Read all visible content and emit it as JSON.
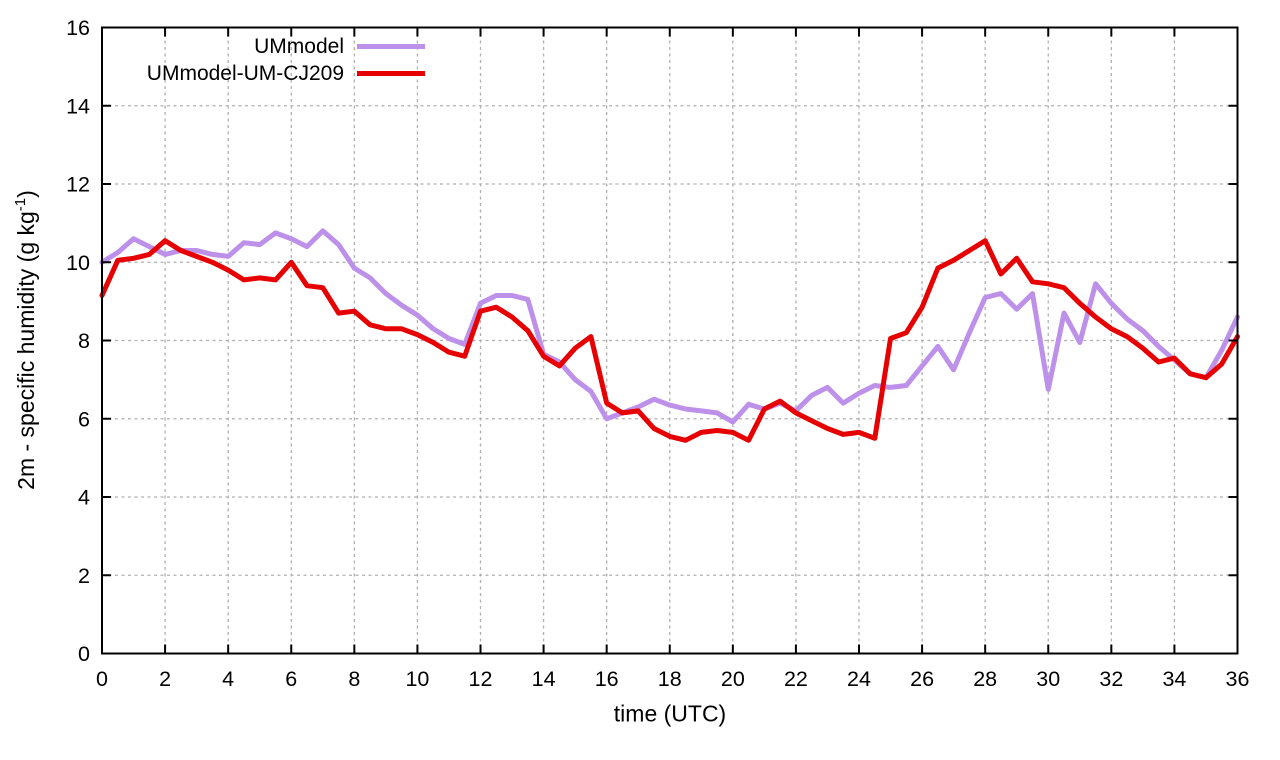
{
  "chart_data": {
    "type": "line",
    "title": "",
    "xlabel": "time (UTC)",
    "ylabel": {
      "main": "2m - specific humidity (g kg",
      "sup": "-1",
      "end": ")"
    },
    "xlim": [
      0,
      36
    ],
    "ylim": [
      0,
      16
    ],
    "xticks": [
      0,
      2,
      4,
      6,
      8,
      10,
      12,
      14,
      16,
      18,
      20,
      22,
      24,
      26,
      28,
      30,
      32,
      34,
      36
    ],
    "yticks": [
      0,
      2,
      4,
      6,
      8,
      10,
      12,
      14,
      16
    ],
    "grid": true,
    "legend_position": "top-left-inside",
    "axis_color": "#000000",
    "grid_color": "#b0b0b0",
    "background": "#ffffff",
    "x": [
      0,
      0.5,
      1,
      1.5,
      2,
      2.5,
      3,
      3.5,
      4,
      4.5,
      5,
      5.5,
      6,
      6.5,
      7,
      7.5,
      8,
      8.5,
      9,
      9.5,
      10,
      10.5,
      11,
      11.5,
      12,
      12.5,
      13,
      13.5,
      14,
      14.5,
      15,
      15.5,
      16,
      16.5,
      17,
      17.5,
      18,
      18.5,
      19,
      19.5,
      20,
      20.5,
      21,
      21.5,
      22,
      22.5,
      23,
      23.5,
      24,
      24.5,
      25,
      25.5,
      26,
      26.5,
      27,
      27.5,
      28,
      28.5,
      29,
      29.5,
      30,
      30.5,
      31,
      31.5,
      32,
      32.5,
      33,
      33.5,
      34,
      34.5,
      35,
      35.5,
      36
    ],
    "series": [
      {
        "name": "UMmodel",
        "color": "#bd90e9",
        "line_width": 5,
        "values": [
          10.0,
          10.25,
          10.6,
          10.4,
          10.2,
          10.3,
          10.3,
          10.2,
          10.15,
          10.5,
          10.45,
          10.75,
          10.6,
          10.4,
          10.8,
          10.45,
          9.85,
          9.6,
          9.2,
          8.9,
          8.65,
          8.3,
          8.05,
          7.9,
          8.95,
          9.15,
          9.15,
          9.05,
          7.65,
          7.45,
          7.0,
          6.7,
          6.0,
          6.15,
          6.3,
          6.5,
          6.35,
          6.25,
          6.2,
          6.15,
          5.92,
          6.37,
          6.25,
          6.4,
          6.2,
          6.6,
          6.8,
          6.4,
          6.65,
          6.85,
          6.8,
          6.85,
          7.35,
          7.85,
          7.25,
          8.2,
          9.1,
          9.2,
          8.8,
          9.2,
          6.75,
          8.7,
          7.95,
          9.45,
          8.95,
          8.55,
          8.25,
          7.85,
          7.5,
          7.15,
          7.05,
          7.75,
          8.6
        ]
      },
      {
        "name": "UMmodel-UM-CJ209",
        "color": "#e60000",
        "line_width": 5,
        "values": [
          9.15,
          10.05,
          10.1,
          10.2,
          10.55,
          10.3,
          10.15,
          10.0,
          9.8,
          9.55,
          9.6,
          9.55,
          10.0,
          9.4,
          9.35,
          8.7,
          8.75,
          8.4,
          8.3,
          8.3,
          8.15,
          7.95,
          7.7,
          7.6,
          8.75,
          8.85,
          8.6,
          8.25,
          7.6,
          7.35,
          7.8,
          8.1,
          6.4,
          6.15,
          6.2,
          5.75,
          5.55,
          5.45,
          5.65,
          5.7,
          5.65,
          5.45,
          6.25,
          6.45,
          6.15,
          5.95,
          5.75,
          5.6,
          5.65,
          5.5,
          8.05,
          8.2,
          8.85,
          9.85,
          10.05,
          10.3,
          10.55,
          9.7,
          10.1,
          9.5,
          9.45,
          9.35,
          8.95,
          8.6,
          8.3,
          8.1,
          7.8,
          7.45,
          7.55,
          7.15,
          7.05,
          7.4,
          8.1
        ]
      }
    ]
  }
}
